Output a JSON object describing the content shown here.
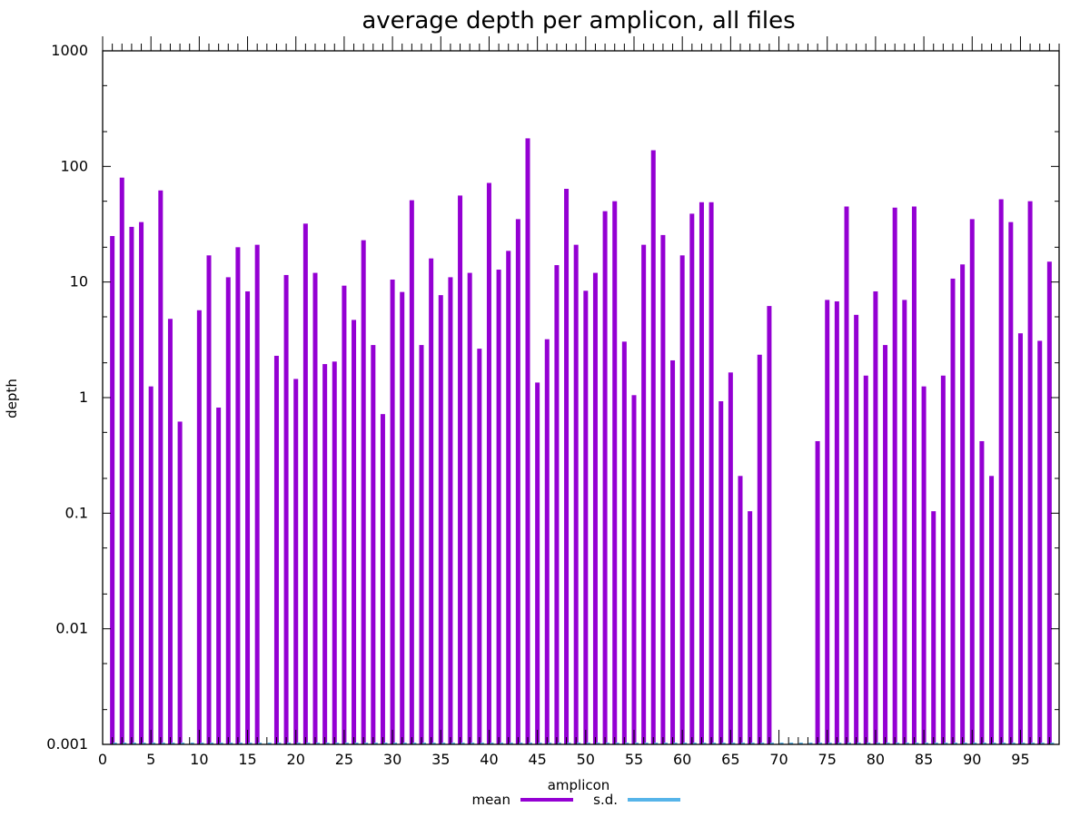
{
  "chart_data": {
    "type": "bar",
    "title": "average depth per amplicon, all files",
    "xlabel": "amplicon",
    "ylabel": "depth",
    "yscale": "log",
    "xlim": [
      0,
      99
    ],
    "ylim": [
      0.001,
      1000
    ],
    "yticks": [
      "0.001",
      "0.01",
      "0.1",
      "1",
      "10",
      "100",
      "1000"
    ],
    "xticks": [
      "0",
      "5",
      "10",
      "15",
      "20",
      "25",
      "30",
      "35",
      "40",
      "45",
      "50",
      "55",
      "60",
      "65",
      "70",
      "75",
      "80",
      "85",
      "90",
      "95"
    ],
    "grid": false,
    "legend_position": "bottom-center",
    "colors": {
      "mean": "#9400d3",
      "sd": "#56b4e9"
    },
    "series": [
      {
        "name": "mean",
        "x": [
          1,
          2,
          3,
          4,
          5,
          6,
          7,
          8,
          9,
          10,
          11,
          12,
          13,
          14,
          15,
          16,
          17,
          18,
          19,
          20,
          21,
          22,
          23,
          24,
          25,
          26,
          27,
          28,
          29,
          30,
          31,
          32,
          33,
          34,
          35,
          36,
          37,
          38,
          39,
          40,
          41,
          42,
          43,
          44,
          45,
          46,
          47,
          48,
          49,
          50,
          51,
          52,
          53,
          54,
          55,
          56,
          57,
          58,
          59,
          60,
          61,
          62,
          63,
          64,
          65,
          66,
          67,
          68,
          69,
          70,
          71,
          72,
          73,
          74,
          75,
          76,
          77,
          78,
          79,
          80,
          81,
          82,
          83,
          84,
          85,
          86,
          87,
          88,
          89,
          90,
          91,
          92,
          93,
          94,
          95,
          96,
          97,
          98
        ],
        "values": [
          25,
          80,
          30,
          33,
          1.25,
          62,
          4.8,
          0.62,
          0.001,
          5.7,
          17,
          0.82,
          11,
          20,
          8.3,
          21,
          0.001,
          2.3,
          11.5,
          1.45,
          32,
          12,
          1.95,
          2.05,
          9.3,
          4.7,
          23,
          2.85,
          0.72,
          10.5,
          8.2,
          51,
          2.85,
          16,
          7.7,
          11,
          56,
          12,
          2.65,
          72,
          12.8,
          18.6,
          35,
          175,
          1.35,
          3.2,
          14,
          64,
          21,
          8.4,
          12,
          41,
          50,
          3.05,
          1.05,
          21,
          138,
          25.5,
          2.1,
          17,
          39,
          49,
          49,
          0.93,
          1.65,
          0.21,
          0.104,
          2.35,
          6.2,
          0.001,
          0.001,
          0.001,
          0.001,
          0.42,
          7,
          6.8,
          45,
          5.2,
          1.55,
          8.3,
          2.85,
          44,
          7,
          45,
          1.25,
          0.104,
          1.55,
          10.7,
          14.2,
          35,
          0.42,
          0.21,
          52,
          33,
          3.6,
          50,
          3.1,
          15
        ]
      },
      {
        "name": "s.d.",
        "x": [
          1,
          2,
          3,
          4,
          5,
          6,
          7,
          8,
          9,
          10,
          11,
          12,
          13,
          14,
          15,
          16,
          17,
          18,
          19,
          20,
          21,
          22,
          23,
          24,
          25,
          26,
          27,
          28,
          29,
          30,
          31,
          32,
          33,
          34,
          35,
          36,
          37,
          38,
          39,
          40,
          41,
          42,
          43,
          44,
          45,
          46,
          47,
          48,
          49,
          50,
          51,
          52,
          53,
          54,
          55,
          56,
          57,
          58,
          59,
          60,
          61,
          62,
          63,
          64,
          65,
          66,
          67,
          68,
          69,
          70,
          71,
          72,
          73,
          74,
          75,
          76,
          77,
          78,
          79,
          80,
          81,
          82,
          83,
          84,
          85,
          86,
          87,
          88,
          89,
          90,
          91,
          92,
          93,
          94,
          95,
          96,
          97,
          98
        ],
        "values": [
          0.001,
          0.001,
          0.001,
          0.001,
          0.001,
          0.001,
          0.001,
          0.001,
          0.001,
          0.001,
          0.001,
          0.001,
          0.001,
          0.001,
          0.001,
          0.001,
          0.001,
          0.001,
          0.001,
          0.001,
          0.001,
          0.001,
          0.001,
          0.001,
          0.001,
          0.001,
          0.001,
          0.001,
          0.001,
          0.001,
          0.001,
          0.001,
          0.001,
          0.001,
          0.001,
          0.001,
          0.001,
          0.001,
          0.001,
          0.001,
          0.001,
          0.001,
          0.001,
          0.001,
          0.001,
          0.001,
          0.001,
          0.001,
          0.001,
          0.001,
          0.001,
          0.001,
          0.001,
          0.001,
          0.001,
          0.001,
          0.001,
          0.001,
          0.001,
          0.001,
          0.001,
          0.001,
          0.001,
          0.001,
          0.001,
          0.001,
          0.001,
          0.001,
          0.001,
          0.001,
          0.001,
          0.001,
          0.001,
          0.001,
          0.001,
          0.001,
          0.001,
          0.001,
          0.001,
          0.001,
          0.001,
          0.001,
          0.001,
          0.001,
          0.001,
          0.001,
          0.001,
          0.001,
          0.001,
          0.001,
          0.001,
          0.001,
          0.001,
          0.001,
          0.001,
          0.001,
          0.001,
          0.001
        ]
      }
    ]
  }
}
